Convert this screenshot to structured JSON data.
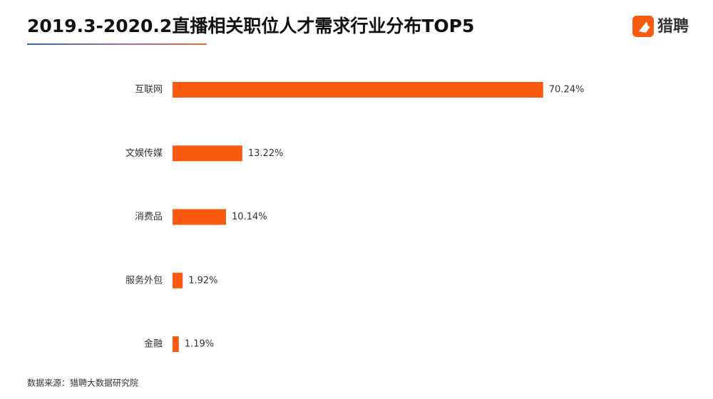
{
  "chart_data": {
    "type": "bar",
    "orientation": "horizontal",
    "title": "2019.3-2020.2直播相关职位人才需求行业分布TOP5",
    "logo": "猎聘",
    "source": "数据来源：猎聘大数据研究院",
    "categories": [
      "互联网",
      "文娱传媒",
      "消费品",
      "服务外包",
      "金融"
    ],
    "values": [
      70.24,
      13.22,
      10.14,
      1.92,
      1.19
    ],
    "value_labels": [
      "70.24%",
      "13.22%",
      "10.14%",
      "1.92%",
      "1.19%"
    ],
    "color": "#fa5a0f"
  }
}
